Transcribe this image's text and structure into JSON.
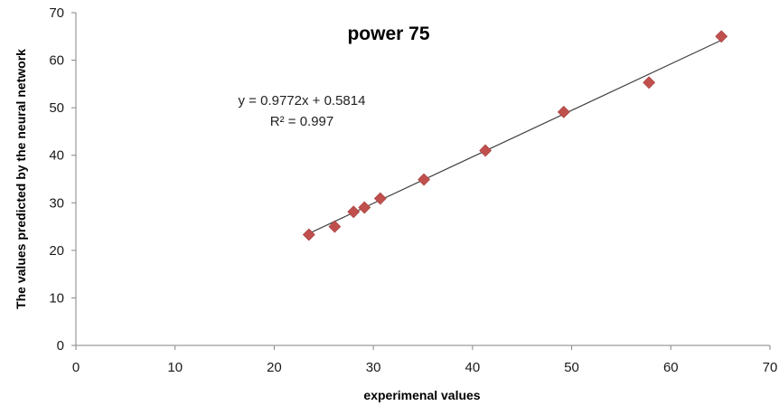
{
  "chart_data": {
    "type": "scatter",
    "title": "power 75",
    "xlabel": "experimenal values",
    "ylabel": "The values predicted by the neural network",
    "xlim": [
      0,
      70
    ],
    "ylim": [
      0,
      70
    ],
    "x_ticks": [
      "0",
      "10",
      "20",
      "30",
      "40",
      "50",
      "60",
      "70"
    ],
    "y_ticks": [
      "0",
      "10",
      "20",
      "30",
      "40",
      "50",
      "60",
      "70"
    ],
    "grid": false,
    "legend": "none",
    "series": [
      {
        "marker": "diamond",
        "color": "#c0504d",
        "x": [
          23.5,
          26.1,
          28.0,
          29.1,
          30.7,
          35.1,
          41.3,
          49.2,
          57.8,
          65.1
        ],
        "y": [
          23.3,
          25.0,
          28.1,
          29.0,
          30.9,
          34.9,
          41.0,
          49.1,
          55.3,
          65.0
        ]
      }
    ],
    "trendline": {
      "slope": 0.9772,
      "intercept": 0.5814,
      "x_range": [
        23.5,
        65.1
      ],
      "color": "#404040",
      "equation": "y = 0.9772x + 0.5814",
      "r_squared": "R² = 0.997"
    }
  }
}
